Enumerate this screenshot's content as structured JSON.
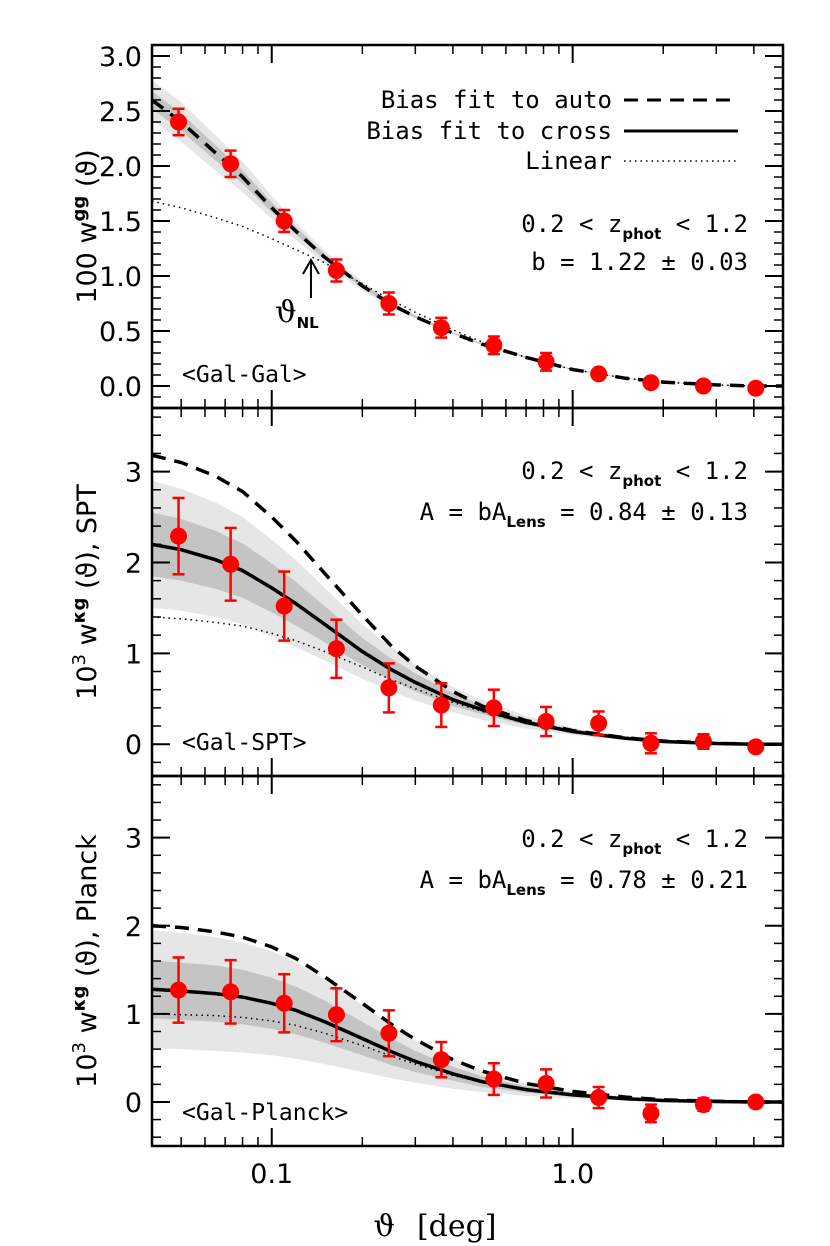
{
  "chart_data": [
    {
      "type": "line",
      "panel": "gal-gal",
      "xscale": "log",
      "xlim": [
        0.04,
        5.0
      ],
      "ylim": [
        -0.2,
        3.1
      ],
      "yticks": [
        "3.0",
        "2.5",
        "2.0",
        "1.5",
        "1.0",
        "0.5",
        "0.0"
      ],
      "ytick_values": [
        3.0,
        2.5,
        2.0,
        1.5,
        1.0,
        0.5,
        0.0
      ],
      "ylabel": {
        "pre": "100 w",
        "sup": "gg",
        "post": " (ϑ)"
      },
      "label": "<Gal-Gal>",
      "annotation_range": {
        "pre": "0.2 < z",
        "sub": "phot",
        "post": " < 1.2"
      },
      "annotation_fit": {
        "pre": "b = 1.22 ± 0.03",
        "sub": "",
        "post": ""
      },
      "arrow_label": {
        "main": "ϑ",
        "sub": "NL"
      },
      "arrow_x": 0.135,
      "legend": {
        "auto": "Bias fit to auto",
        "cross": "Bias fit to cross",
        "linear": "Linear"
      },
      "points": {
        "x": [
          0.049,
          0.073,
          0.11,
          0.164,
          0.245,
          0.366,
          0.547,
          0.816,
          1.22,
          1.82,
          2.72,
          4.06
        ],
        "y": [
          2.4,
          2.02,
          1.5,
          1.05,
          0.75,
          0.53,
          0.37,
          0.22,
          0.11,
          0.03,
          0.0,
          -0.02
        ],
        "err": [
          0.12,
          0.12,
          0.1,
          0.1,
          0.1,
          0.09,
          0.08,
          0.08,
          0.03,
          0.0,
          0.0,
          0.0
        ]
      },
      "curves": {
        "x": [
          0.04,
          0.05,
          0.065,
          0.08,
          0.1,
          0.12,
          0.15,
          0.2,
          0.25,
          0.3,
          0.4,
          0.5,
          0.7,
          1.0,
          1.5,
          2.0,
          3.0,
          4.0,
          5.0
        ],
        "auto": [
          2.6,
          2.4,
          2.12,
          1.9,
          1.62,
          1.41,
          1.17,
          0.91,
          0.74,
          0.63,
          0.48,
          0.38,
          0.26,
          0.15,
          0.07,
          0.035,
          0.01,
          0.0,
          0.0
        ],
        "cross": null,
        "linear": [
          1.68,
          1.62,
          1.53,
          1.45,
          1.34,
          1.24,
          1.12,
          0.93,
          0.78,
          0.67,
          0.51,
          0.4,
          0.26,
          0.15,
          0.07,
          0.035,
          0.01,
          0.0,
          0.0
        ],
        "band_outer_lo": [
          2.42,
          2.22,
          1.96,
          1.76,
          1.52,
          1.33,
          1.11,
          0.87,
          0.71,
          0.61,
          0.47,
          0.37,
          0.25,
          0.145,
          0.065,
          0.03,
          0.008,
          0.0,
          0.0
        ],
        "band_outer_hi": [
          2.78,
          2.58,
          2.28,
          2.04,
          1.73,
          1.49,
          1.23,
          0.95,
          0.77,
          0.65,
          0.49,
          0.39,
          0.27,
          0.155,
          0.075,
          0.04,
          0.012,
          0.0,
          0.0
        ],
        "band_inner_lo": [
          2.52,
          2.32,
          2.05,
          1.84,
          1.58,
          1.38,
          1.15,
          0.89,
          0.73,
          0.62,
          0.475,
          0.375,
          0.255,
          0.148,
          0.068,
          0.033,
          0.009,
          0.0,
          0.0
        ],
        "band_inner_hi": [
          2.68,
          2.48,
          2.19,
          1.96,
          1.67,
          1.45,
          1.2,
          0.93,
          0.76,
          0.64,
          0.485,
          0.385,
          0.265,
          0.152,
          0.072,
          0.037,
          0.011,
          0.0,
          0.0
        ]
      }
    },
    {
      "type": "line",
      "panel": "gal-spt",
      "xscale": "log",
      "xlim": [
        0.04,
        5.0
      ],
      "ylim": [
        -0.35,
        3.7
      ],
      "yticks": [
        "3",
        "2",
        "1",
        "0"
      ],
      "ytick_values": [
        3,
        2,
        1,
        0
      ],
      "ylabel": {
        "pre": "10",
        "sup0": "3",
        "mid": " w",
        "sup": "κg",
        "post": " (ϑ), SPT"
      },
      "label": "<Gal-SPT>",
      "annotation_range": {
        "pre": "0.2 < z",
        "sub": "phot",
        "post": " < 1.2"
      },
      "annotation_fit": {
        "pre": "A = bA",
        "sub": "Lens",
        "post": " = 0.84 ± 0.13"
      },
      "points": {
        "x": [
          0.049,
          0.073,
          0.11,
          0.164,
          0.245,
          0.366,
          0.547,
          0.816,
          1.22,
          1.82,
          2.72,
          4.06
        ],
        "y": [
          2.29,
          1.98,
          1.52,
          1.05,
          0.62,
          0.43,
          0.4,
          0.25,
          0.23,
          0.01,
          0.03,
          -0.03
        ],
        "err": [
          0.42,
          0.4,
          0.38,
          0.32,
          0.27,
          0.24,
          0.2,
          0.16,
          0.13,
          0.11,
          0.08,
          0.0
        ]
      },
      "curves": {
        "x": [
          0.04,
          0.05,
          0.065,
          0.08,
          0.1,
          0.12,
          0.15,
          0.2,
          0.25,
          0.3,
          0.4,
          0.5,
          0.7,
          1.0,
          1.5,
          2.0,
          3.0,
          4.0,
          5.0
        ],
        "auto": [
          3.18,
          3.1,
          2.95,
          2.78,
          2.5,
          2.24,
          1.88,
          1.42,
          1.08,
          0.86,
          0.58,
          0.42,
          0.26,
          0.15,
          0.07,
          0.035,
          0.01,
          0.0,
          0.0
        ],
        "cross": [
          2.2,
          2.14,
          2.03,
          1.91,
          1.72,
          1.55,
          1.32,
          1.02,
          0.82,
          0.68,
          0.49,
          0.38,
          0.24,
          0.14,
          0.065,
          0.03,
          0.008,
          0.0,
          0.0
        ],
        "linear": [
          1.4,
          1.38,
          1.34,
          1.3,
          1.22,
          1.14,
          1.02,
          0.85,
          0.71,
          0.61,
          0.46,
          0.36,
          0.23,
          0.135,
          0.063,
          0.03,
          0.008,
          0.0,
          0.0
        ],
        "band_outer_lo": [
          1.5,
          1.47,
          1.4,
          1.32,
          1.19,
          1.07,
          0.92,
          0.72,
          0.58,
          0.48,
          0.35,
          0.27,
          0.17,
          0.1,
          0.045,
          0.02,
          0.005,
          0.0,
          0.0
        ],
        "band_outer_hi": [
          2.9,
          2.81,
          2.66,
          2.5,
          2.25,
          2.03,
          1.72,
          1.32,
          1.06,
          0.88,
          0.63,
          0.49,
          0.31,
          0.18,
          0.085,
          0.04,
          0.011,
          0.0,
          0.0
        ],
        "band_inner_lo": [
          1.85,
          1.8,
          1.71,
          1.61,
          1.45,
          1.31,
          1.12,
          0.87,
          0.7,
          0.58,
          0.42,
          0.33,
          0.21,
          0.12,
          0.055,
          0.025,
          0.006,
          0.0,
          0.0
        ],
        "band_inner_hi": [
          2.55,
          2.48,
          2.35,
          2.21,
          1.99,
          1.79,
          1.52,
          1.17,
          0.94,
          0.78,
          0.56,
          0.43,
          0.27,
          0.16,
          0.075,
          0.035,
          0.01,
          0.0,
          0.0
        ]
      }
    },
    {
      "type": "line",
      "panel": "gal-planck",
      "xscale": "log",
      "xlim": [
        0.04,
        5.0
      ],
      "ylim": [
        -0.5,
        3.7
      ],
      "yticks": [
        "3",
        "2",
        "1",
        "0"
      ],
      "ytick_values": [
        3,
        2,
        1,
        0
      ],
      "ylabel": {
        "pre": "10",
        "sup0": "3",
        "mid": " w",
        "sup": "κg",
        "post": " (ϑ), Planck"
      },
      "label": "<Gal-Planck>",
      "annotation_range": {
        "pre": "0.2 < z",
        "sub": "phot",
        "post": " < 1.2"
      },
      "annotation_fit": {
        "pre": "A = bA",
        "sub": "Lens",
        "post": " = 0.78 ± 0.21"
      },
      "points": {
        "x": [
          0.049,
          0.073,
          0.11,
          0.164,
          0.245,
          0.366,
          0.547,
          0.816,
          1.22,
          1.82,
          2.72,
          4.06
        ],
        "y": [
          1.27,
          1.25,
          1.12,
          0.99,
          0.78,
          0.48,
          0.26,
          0.21,
          0.05,
          -0.13,
          -0.03,
          0.0
        ],
        "err": [
          0.37,
          0.36,
          0.33,
          0.3,
          0.26,
          0.2,
          0.18,
          0.16,
          0.12,
          0.1,
          0.07,
          0.0
        ]
      },
      "curves": {
        "x": [
          0.04,
          0.05,
          0.065,
          0.08,
          0.1,
          0.12,
          0.15,
          0.2,
          0.25,
          0.3,
          0.4,
          0.5,
          0.7,
          1.0,
          1.5,
          2.0,
          3.0,
          4.0,
          5.0
        ],
        "auto": [
          2.0,
          1.98,
          1.93,
          1.87,
          1.76,
          1.63,
          1.42,
          1.12,
          0.88,
          0.71,
          0.48,
          0.35,
          0.21,
          0.12,
          0.055,
          0.025,
          0.007,
          0.0,
          0.0
        ],
        "cross": [
          1.28,
          1.26,
          1.23,
          1.19,
          1.12,
          1.04,
          0.91,
          0.72,
          0.57,
          0.46,
          0.32,
          0.23,
          0.14,
          0.08,
          0.037,
          0.017,
          0.005,
          0.0,
          0.0
        ],
        "linear": [
          1.0,
          0.99,
          0.98,
          0.96,
          0.92,
          0.87,
          0.78,
          0.64,
          0.52,
          0.43,
          0.3,
          0.22,
          0.135,
          0.077,
          0.035,
          0.016,
          0.005,
          0.0,
          0.0
        ],
        "band_outer_lo": [
          0.61,
          0.6,
          0.58,
          0.56,
          0.53,
          0.49,
          0.43,
          0.34,
          0.27,
          0.22,
          0.15,
          0.11,
          0.067,
          0.038,
          0.017,
          0.008,
          0.002,
          0.0,
          0.0
        ],
        "band_outer_hi": [
          1.95,
          1.92,
          1.87,
          1.81,
          1.71,
          1.59,
          1.39,
          1.1,
          0.87,
          0.7,
          0.49,
          0.35,
          0.21,
          0.12,
          0.056,
          0.026,
          0.007,
          0.0,
          0.0
        ],
        "band_inner_lo": [
          0.95,
          0.93,
          0.91,
          0.88,
          0.83,
          0.77,
          0.67,
          0.53,
          0.42,
          0.34,
          0.24,
          0.17,
          0.104,
          0.059,
          0.027,
          0.012,
          0.003,
          0.0,
          0.0
        ],
        "band_inner_hi": [
          1.61,
          1.58,
          1.55,
          1.5,
          1.41,
          1.31,
          1.15,
          0.91,
          0.72,
          0.58,
          0.4,
          0.29,
          0.176,
          0.1,
          0.047,
          0.022,
          0.006,
          0.0,
          0.0
        ]
      }
    }
  ],
  "xaxis": {
    "ticks": [
      "0.1",
      "1.0"
    ],
    "tick_values": [
      0.1,
      1.0
    ],
    "label_symbol": "ϑ",
    "label_unit": "[deg]"
  },
  "colors": {
    "points": "#ff0000",
    "band_outer": "#e6e6e6",
    "band_inner": "#c4c4c4",
    "lines": "#000000"
  }
}
